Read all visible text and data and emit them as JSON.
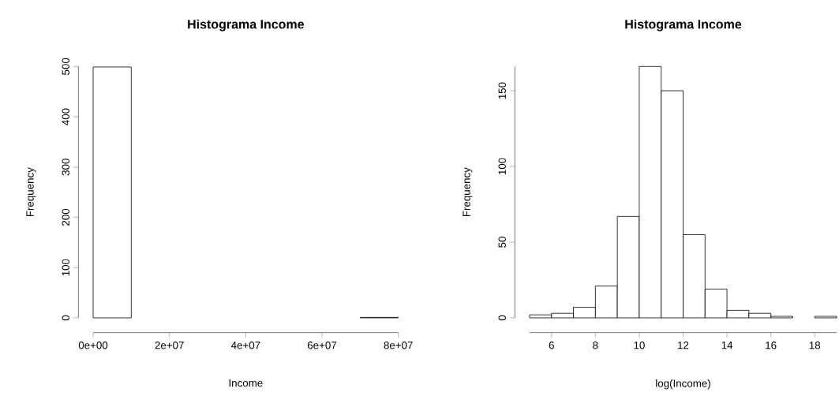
{
  "chart_data": [
    {
      "type": "histogram",
      "title": "Histograma Income",
      "xlabel": "Income",
      "ylabel": "Frequency",
      "bins": [
        0,
        10000000,
        20000000,
        30000000,
        40000000,
        50000000,
        60000000,
        70000000,
        80000000
      ],
      "values": [
        499,
        0,
        0,
        0,
        0,
        0,
        0,
        1
      ],
      "color": "#ffffff",
      "xlim": [
        0,
        80000000
      ],
      "ylim": [
        0,
        500
      ],
      "xticks": [
        {
          "value": 0,
          "label": "0e+00"
        },
        {
          "value": 20000000,
          "label": "2e+07"
        },
        {
          "value": 40000000,
          "label": "4e+07"
        },
        {
          "value": 60000000,
          "label": "6e+07"
        },
        {
          "value": 80000000,
          "label": "8e+07"
        }
      ],
      "yticks": [
        0,
        100,
        200,
        300,
        400,
        500
      ],
      "grid": false
    },
    {
      "type": "histogram",
      "title": "Histograma Income",
      "xlabel": "log(Income)",
      "ylabel": "Frequency",
      "bins": [
        5,
        6,
        7,
        8,
        9,
        10,
        11,
        12,
        13,
        14,
        15,
        16,
        17,
        18,
        19
      ],
      "values": [
        2,
        3,
        7,
        21,
        67,
        166,
        150,
        55,
        19,
        5,
        3,
        1,
        0,
        1
      ],
      "color": "#ffffff",
      "xlim": [
        5,
        19
      ],
      "ylim": [
        0,
        166
      ],
      "xticks": [
        6,
        8,
        10,
        12,
        14,
        16,
        18
      ],
      "yticks": [
        0,
        50,
        100,
        150
      ],
      "grid": false
    }
  ]
}
